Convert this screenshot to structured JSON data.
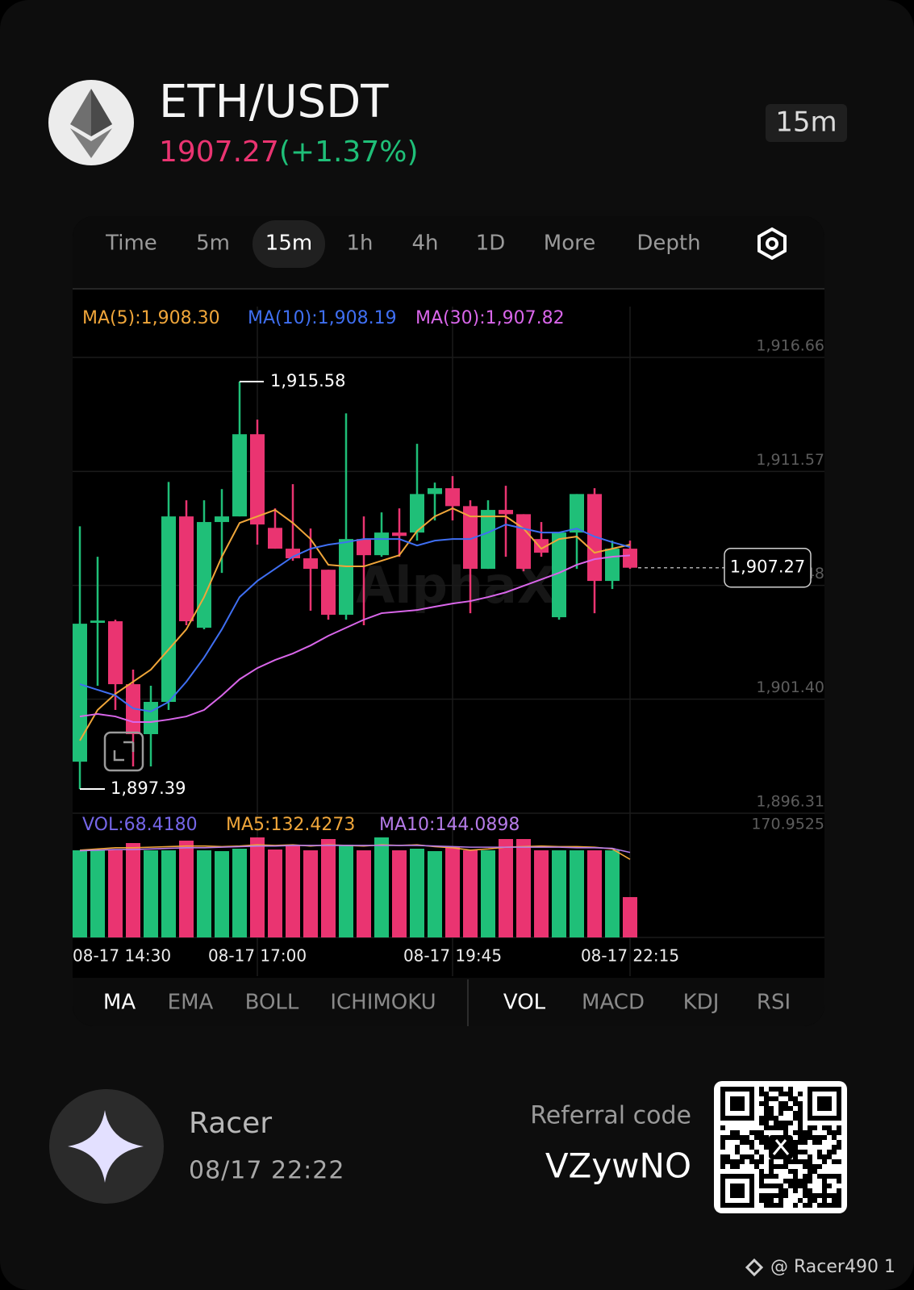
{
  "header": {
    "pair": "ETH/USDT",
    "price": "1907.27",
    "change": "(+1.37%)",
    "interval": "15m"
  },
  "tabs": [
    {
      "label": "Time"
    },
    {
      "label": "5m"
    },
    {
      "label": "15m",
      "active": true
    },
    {
      "label": "1h"
    },
    {
      "label": "4h"
    },
    {
      "label": "1D"
    },
    {
      "label": "More"
    },
    {
      "label": "Depth"
    }
  ],
  "watermark": "AlphaX",
  "chart_data": {
    "type": "candlestick",
    "categories": [
      "08-17 14:30",
      null,
      null,
      null,
      null,
      null,
      null,
      null,
      null,
      null,
      "08-17 17:00",
      null,
      null,
      null,
      null,
      null,
      null,
      null,
      null,
      null,
      null,
      "08-17 19:45",
      null,
      null,
      null,
      null,
      null,
      null,
      null,
      null,
      null,
      "08-17 22:15"
    ],
    "open": [
      1898.61,
      1904.81,
      1904.88,
      1902.07,
      1899.84,
      1901.28,
      1909.56,
      1904.59,
      1909.31,
      1909.56,
      1913.23,
      1909.05,
      1908.12,
      1907.69,
      1907.18,
      1905.17,
      1908.55,
      1907.83,
      1908.84,
      1908.84,
      1910.56,
      1910.82,
      1910.02,
      1907.22,
      1909.85,
      1909.66,
      1908.55,
      1905.06,
      1908.84,
      1910.56,
      1906.68,
      1908.12
    ],
    "high": [
      1909.12,
      1907.76,
      1904.95,
      1902.72,
      1902.0,
      1911.1,
      1910.28,
      1910.28,
      1910.78,
      1915.58,
      1913.88,
      1909.92,
      1911.0,
      1909.02,
      1907.18,
      1914.16,
      1909.56,
      1909.74,
      1909.92,
      1912.8,
      1911.07,
      1911.36,
      1910.28,
      1910.28,
      1910.93,
      1909.66,
      1909.31,
      1908.84,
      1910.56,
      1910.82,
      1908.48,
      1908.48
    ],
    "low": [
      1897.39,
      1902.0,
      1900.92,
      1898.4,
      1898.4,
      1900.92,
      1904.7,
      1904.52,
      1907.04,
      1909.56,
      1908.3,
      1908.12,
      1907.58,
      1905.35,
      1904.95,
      1904.95,
      1904.7,
      1907.76,
      1907.76,
      1908.48,
      1909.38,
      1909.38,
      1905.24,
      1907.22,
      1907.76,
      1907.11,
      1907.76,
      1904.95,
      1907.22,
      1905.24,
      1906.32,
      1907.22
    ],
    "close": [
      1904.77,
      1904.91,
      1902.07,
      1899.84,
      1901.28,
      1909.56,
      1904.88,
      1909.31,
      1909.56,
      1913.23,
      1909.2,
      1908.12,
      1907.69,
      1907.22,
      1905.17,
      1908.55,
      1907.83,
      1908.84,
      1908.69,
      1910.56,
      1910.82,
      1910.02,
      1907.22,
      1909.85,
      1909.66,
      1907.22,
      1907.94,
      1908.84,
      1910.56,
      1906.68,
      1908.12,
      1907.27
    ],
    "up_color": "#1fbf78",
    "down_color": "#ea3471",
    "ylim": [
      1896.31,
      1916.66
    ],
    "yticks": [
      {
        "value": 1896.31,
        "label": "1,896.31"
      },
      {
        "value": 1901.4,
        "label": "1,901.40"
      },
      {
        "value": 1906.48,
        "label": "1,906.48"
      },
      {
        "value": 1911.57,
        "label": "1,911.57"
      },
      {
        "value": 1916.66,
        "label": "1,916.66"
      }
    ],
    "grid": true,
    "series": [
      {
        "name": "MA(5):1,908.30",
        "color": "#f0a63a",
        "values": [
          1899.55,
          1900.92,
          1901.64,
          1902.18,
          1902.72,
          1903.62,
          1904.52,
          1905.96,
          1907.76,
          1909.27,
          1909.56,
          1909.85,
          1909.27,
          1908.55,
          1907.4,
          1907.33,
          1907.33,
          1907.58,
          1907.83,
          1908.91,
          1909.56,
          1909.92,
          1909.56,
          1909.56,
          1909.56,
          1909.02,
          1908.12,
          1908.55,
          1908.66,
          1907.94,
          1908.12,
          1908.3
        ]
      },
      {
        "name": "MA(10):1,908.19",
        "color": "#3f6ff2",
        "values": [
          1902.07,
          1901.82,
          1901.57,
          1900.99,
          1900.85,
          1901.28,
          1902.18,
          1903.26,
          1904.52,
          1905.96,
          1906.68,
          1907.22,
          1907.76,
          1908.12,
          1908.3,
          1908.41,
          1908.55,
          1908.55,
          1908.55,
          1908.26,
          1908.48,
          1908.55,
          1908.55,
          1908.84,
          1909.2,
          1909.02,
          1908.84,
          1908.84,
          1909.02,
          1908.66,
          1908.41,
          1908.19
        ]
      },
      {
        "name": "MA(30):1,907.82",
        "color": "#d966ea",
        "values": [
          1900.63,
          1900.74,
          1900.63,
          1900.38,
          1900.38,
          1900.49,
          1900.63,
          1900.92,
          1901.57,
          1902.29,
          1902.79,
          1903.15,
          1903.44,
          1903.8,
          1904.23,
          1904.59,
          1904.95,
          1905.24,
          1905.31,
          1905.38,
          1905.53,
          1905.67,
          1905.78,
          1905.96,
          1906.17,
          1906.46,
          1906.75,
          1907.04,
          1907.4,
          1907.65,
          1907.76,
          1907.82
        ]
      }
    ],
    "high_label": {
      "value": 1915.58,
      "label": "1,915.58"
    },
    "low_label": {
      "value": 1897.39,
      "label": "1,897.39"
    },
    "last_price": {
      "value": 1907.27,
      "label": "1,907.27"
    },
    "volume": {
      "label": "VOL:68.4180",
      "label_color": "#7566e8",
      "values": [
        147.7,
        147.7,
        147.7,
        160.01,
        147.7,
        147.7,
        164.11,
        147.7,
        146.33,
        150.44,
        169.58,
        149.07,
        155.91,
        147.7,
        166.85,
        157.27,
        147.7,
        169.58,
        147.7,
        150.44,
        146.33,
        153.17,
        147.7,
        147.7,
        166.85,
        166.85,
        147.7,
        147.7,
        147.7,
        147.7,
        147.7,
        68.418
      ],
      "ylim": [
        0,
        170.9525
      ],
      "yticks": [
        170.9525
      ],
      "series": [
        {
          "name": "MA5:132.4273",
          "color": "#f0a63a",
          "values": [
            148,
            150,
            152,
            152,
            153,
            154,
            155,
            155,
            154,
            155,
            157,
            156,
            157,
            155,
            157,
            156,
            155,
            157,
            156,
            157,
            154,
            152,
            148,
            150,
            153,
            154,
            155,
            154,
            154,
            153,
            150,
            132.4273
          ]
        },
        {
          "name": "MA10:144.0898",
          "color": "#b57be8",
          "values": [
            147,
            148,
            149,
            149,
            150,
            151,
            152,
            152,
            153,
            154,
            155,
            155,
            156,
            156,
            156,
            156,
            156,
            156,
            156,
            156,
            155,
            154,
            153,
            153,
            153,
            153,
            153,
            153,
            152,
            152,
            151,
            144.0898
          ]
        }
      ]
    }
  },
  "indicator_tabs": {
    "main": [
      {
        "label": "MA",
        "active": true
      },
      {
        "label": "EMA"
      },
      {
        "label": "BOLL"
      },
      {
        "label": "ICHIMOKU"
      }
    ],
    "sub": [
      {
        "label": "VOL",
        "active": true
      },
      {
        "label": "MACD"
      },
      {
        "label": "KDJ"
      },
      {
        "label": "RSI"
      }
    ]
  },
  "footer": {
    "user": "Racer",
    "time": "08/17 22:22",
    "referral_label": "Referral code",
    "referral_code": "VZywNO",
    "credit": "@ Racer490 1"
  }
}
